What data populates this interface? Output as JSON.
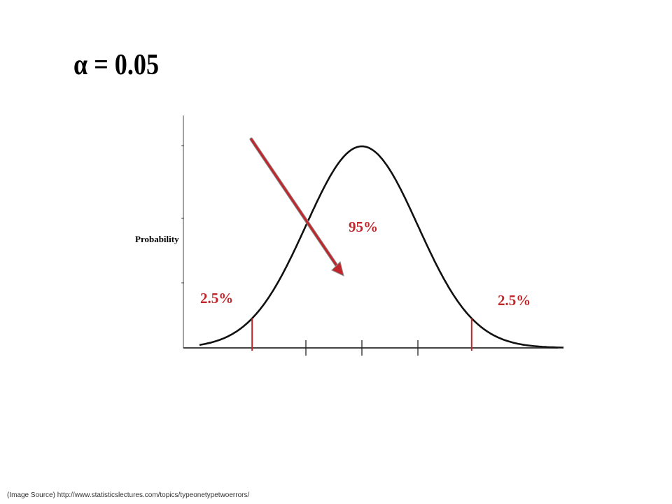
{
  "slide": {
    "title": "α = 0.05",
    "source_note": "(Image Source) http://www.statisticslectures.com/topics/typeonetypetwoerrors/"
  },
  "colors": {
    "curve": "#111111",
    "axis": "#444444",
    "highlight": "#c0262b",
    "arrow_fill": "#c0262b",
    "arrow_outline": "#8b8b8b"
  },
  "chart_data": {
    "type": "line",
    "title": "",
    "ylabel": "Probability",
    "xlabel": "",
    "distribution": "normal",
    "mean": 0,
    "sd": 1,
    "xlim": [
      -2.9,
      3.6
    ],
    "x_ticks": [
      -1.96,
      -1,
      0,
      1,
      1.96
    ],
    "critical_values": [
      -1.96,
      1.96
    ],
    "annotations": [
      {
        "label": "2.5%",
        "region": "left-tail"
      },
      {
        "label": "95%",
        "region": "center"
      },
      {
        "label": "2.5%",
        "region": "right-tail"
      }
    ]
  }
}
